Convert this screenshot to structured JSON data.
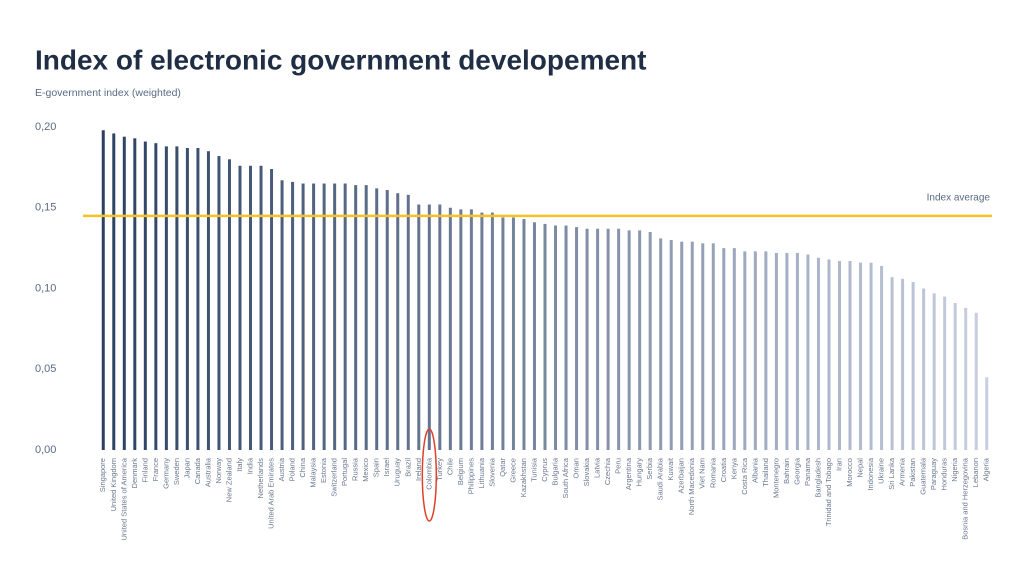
{
  "chart_data": {
    "type": "bar",
    "title": "Index of electronic government developement",
    "y_label": "E-government index (weighted)",
    "categories": [
      "Singapore",
      "United Kingdom",
      "United States of America",
      "Denmark",
      "Finland",
      "France",
      "Germany",
      "Sweden",
      "Japan",
      "Canada",
      "Australia",
      "Norway",
      "New Zealand",
      "Italy",
      "India",
      "Netherlands",
      "United Arab Emirates",
      "Austria",
      "Poland",
      "China",
      "Malaysia",
      "Estonia",
      "Switzerland",
      "Portugal",
      "Russia",
      "Mexico",
      "Spain",
      "Israel",
      "Uruguay",
      "Brazil",
      "Ireland",
      "Colombia",
      "Turkey",
      "Chile",
      "Belgium",
      "Philippines",
      "Lithuania",
      "Slovenia",
      "Qatar",
      "Greece",
      "Kazakhstan",
      "Tunisia",
      "Cyprus",
      "Bulgaria",
      "South Africa",
      "Oman",
      "Slovakia",
      "Latvia",
      "Czechia",
      "Peru",
      "Argentina",
      "Hungary",
      "Serbia",
      "Saudi Arabia",
      "Kuwait",
      "Azerbaijan",
      "North Macedonia",
      "Viet Nam",
      "Romania",
      "Croatia",
      "Kenya",
      "Costa Rica",
      "Albania",
      "Thailand",
      "Montenegro",
      "Bahrain",
      "Georgia",
      "Panama",
      "Bangladesh",
      "Trinidad and Tobago",
      "Iran",
      "Morocco",
      "Nepal",
      "Indonesia",
      "Ukraine",
      "Sri Lanka",
      "Armenia",
      "Pakistan",
      "Guatemala",
      "Paraguay",
      "Honduras",
      "Nigeria",
      "Bosnia and Herzegovina",
      "Lebanon",
      "Algeria"
    ],
    "values": [
      0.198,
      0.196,
      0.194,
      0.193,
      0.191,
      0.19,
      0.188,
      0.188,
      0.187,
      0.187,
      0.185,
      0.182,
      0.18,
      0.176,
      0.176,
      0.176,
      0.174,
      0.167,
      0.166,
      0.165,
      0.165,
      0.165,
      0.165,
      0.165,
      0.164,
      0.164,
      0.162,
      0.161,
      0.159,
      0.158,
      0.152,
      0.152,
      0.152,
      0.15,
      0.149,
      0.149,
      0.147,
      0.147,
      0.144,
      0.144,
      0.143,
      0.141,
      0.14,
      0.139,
      0.139,
      0.138,
      0.137,
      0.137,
      0.137,
      0.137,
      0.136,
      0.136,
      0.135,
      0.131,
      0.13,
      0.129,
      0.129,
      0.128,
      0.128,
      0.125,
      0.125,
      0.123,
      0.123,
      0.123,
      0.122,
      0.122,
      0.122,
      0.121,
      0.119,
      0.118,
      0.117,
      0.117,
      0.116,
      0.116,
      0.114,
      0.107,
      0.106,
      0.104,
      0.1,
      0.097,
      0.095,
      0.091,
      0.088,
      0.085,
      0.045
    ],
    "color_start": "#2b4162",
    "color_end": "#c9cfe0",
    "ylim": [
      0,
      0.2
    ],
    "yticks": [
      {
        "value": 0,
        "label": "0,00"
      },
      {
        "value": 0.05,
        "label": "0,05"
      },
      {
        "value": 0.1,
        "label": "0,10"
      },
      {
        "value": 0.15,
        "label": "0,15"
      },
      {
        "value": 0.2,
        "label": "0,20"
      }
    ],
    "grid": false,
    "average": {
      "label": "Index average",
      "value": 0.145,
      "color": "#f5c125"
    },
    "highlight": {
      "category": 31,
      "color": "#e0402a"
    }
  }
}
